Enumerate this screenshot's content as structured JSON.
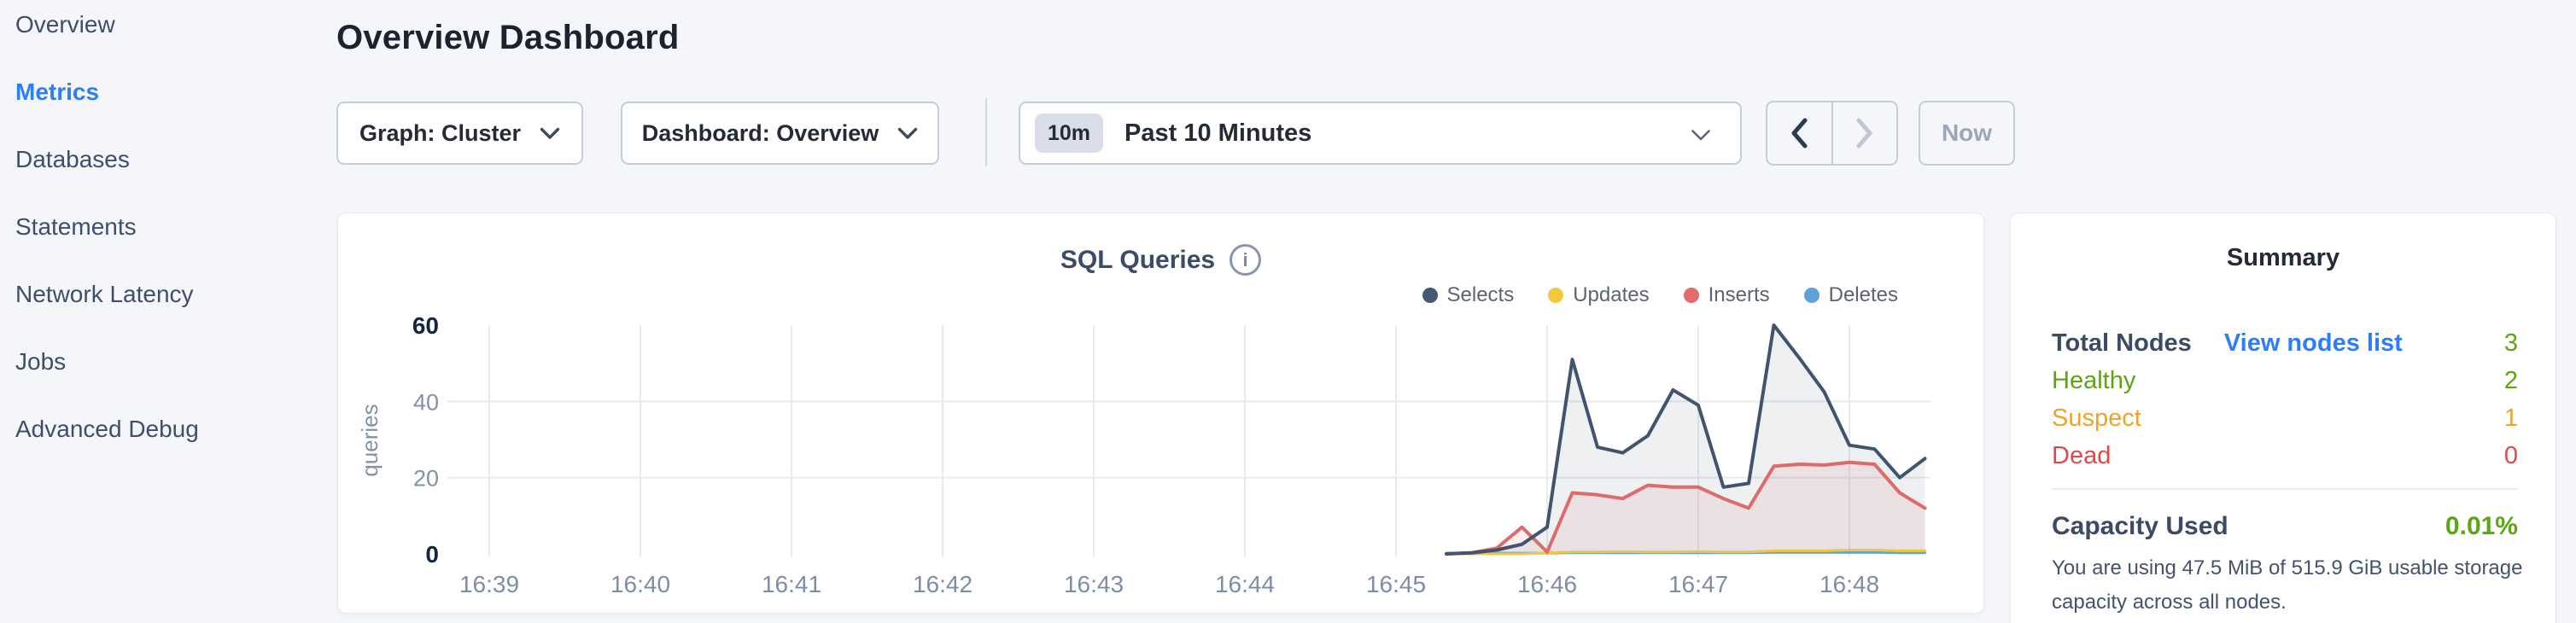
{
  "sidebar": {
    "items": [
      {
        "label": "Overview",
        "active": false
      },
      {
        "label": "Metrics",
        "active": true
      },
      {
        "label": "Databases",
        "active": false
      },
      {
        "label": "Statements",
        "active": false
      },
      {
        "label": "Network Latency",
        "active": false
      },
      {
        "label": "Jobs",
        "active": false
      },
      {
        "label": "Advanced Debug",
        "active": false
      }
    ]
  },
  "header": {
    "title": "Overview Dashboard"
  },
  "toolbar": {
    "graph_selector_label": "Graph: Cluster",
    "dashboard_selector_label": "Dashboard: Overview",
    "time_window_badge": "10m",
    "time_window_label": "Past 10 Minutes",
    "now_label": "Now"
  },
  "chart_data": {
    "type": "area",
    "title": "SQL Queries",
    "ylabel": "queries",
    "xlabel": "",
    "grid": true,
    "legend_position": "top-right",
    "ylim": [
      0,
      60
    ],
    "y_ticks": [
      {
        "value": 0,
        "bold": true
      },
      {
        "value": 20,
        "bold": false
      },
      {
        "value": 40,
        "bold": false
      },
      {
        "value": 60,
        "bold": true
      }
    ],
    "x_ticks": [
      "16:39",
      "16:40",
      "16:41",
      "16:42",
      "16:43",
      "16:44",
      "16:45",
      "16:46",
      "16:47",
      "16:48"
    ],
    "series_start_minute": 6.3333,
    "point_interval_minutes": 0.16667,
    "colors": {
      "grid": "#e8eaef"
    },
    "series": [
      {
        "name": "Selects",
        "color": "#475872",
        "line": "#40546f",
        "fill": "rgba(64,84,111,0.09)",
        "width": 4,
        "values": [
          0,
          0.3,
          1,
          2.5,
          7,
          51,
          28,
          26.5,
          31,
          43,
          39,
          17.5,
          18.5,
          60,
          51.5,
          42.5,
          28.5,
          27.5,
          20,
          25
        ]
      },
      {
        "name": "Updates",
        "color": "#f2c83d",
        "line": "#edc83f",
        "fill": "none",
        "width": 3,
        "values": [
          0,
          0,
          0,
          0,
          0.3,
          0.5,
          0.5,
          0.6,
          0.5,
          0.5,
          0.6,
          0.5,
          0.5,
          0.8,
          0.8,
          0.8,
          1,
          1,
          0.8,
          0.8
        ]
      },
      {
        "name": "Inserts",
        "color": "#e06c6c",
        "line": "#dd6b6b",
        "fill": "rgba(221,107,107,0.11)",
        "width": 4,
        "values": [
          0,
          0.3,
          1.5,
          7,
          0.5,
          16,
          15.5,
          14.5,
          18,
          17.5,
          17.5,
          14.5,
          12,
          23,
          23.5,
          23.3,
          24,
          23.5,
          16,
          12
        ]
      },
      {
        "name": "Deletes",
        "color": "#5ea3d7",
        "line": "#5ea3d7",
        "fill": "none",
        "width": 3,
        "values": [
          0.2,
          0.2,
          0.2,
          0.2,
          0.2,
          0.3,
          0.3,
          0.3,
          0.3,
          0.3,
          0.3,
          0.3,
          0.3,
          0.4,
          0.4,
          0.4,
          0.4,
          0.4,
          0.3,
          0.3
        ]
      }
    ]
  },
  "summary": {
    "title": "Summary",
    "total_nodes_label": "Total Nodes",
    "view_nodes_link": "View nodes list",
    "total_nodes_value": "3",
    "healthy_label": "Healthy",
    "healthy_value": "2",
    "suspect_label": "Suspect",
    "suspect_value": "1",
    "dead_label": "Dead",
    "dead_value": "0",
    "capacity_label": "Capacity Used",
    "capacity_value": "0.01%",
    "capacity_description_lines": [
      "You are using 47.5 MiB of 515.9 GiB usable storage",
      "capacity across all nodes."
    ]
  }
}
